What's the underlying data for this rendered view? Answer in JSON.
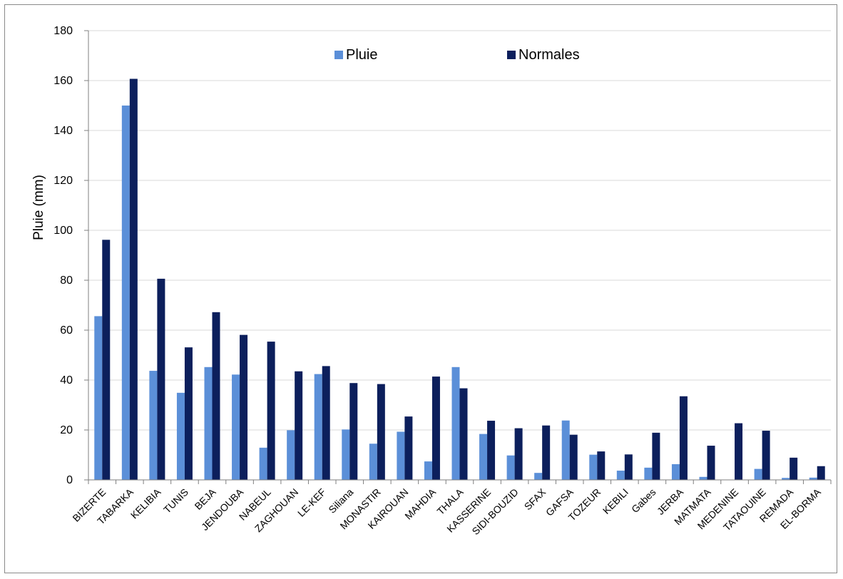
{
  "chart_data": {
    "type": "bar",
    "title": "",
    "xlabel": "",
    "ylabel": "Pluie (mm)",
    "ylim": [
      0,
      180
    ],
    "yticks": [
      0,
      20,
      40,
      60,
      80,
      100,
      120,
      140,
      160,
      180
    ],
    "grid": true,
    "legend_position": "top-center",
    "colors": {
      "Pluie": "#5b8fd8",
      "Normales": "#0c1f5c",
      "grid": "#d9d9d9",
      "axis": "#7f7f7f"
    },
    "categories": [
      "BIZERTE",
      "TABARKA",
      "KELIBIA",
      "TUNIS",
      "BEJA",
      "JENDOUBA",
      "NABEUL",
      "ZAGHOUAN",
      "LE-KEF",
      "Siliana",
      "MONASTIR",
      "KAIROUAN",
      "MAHDIA",
      "THALA",
      "KASSERINE",
      "SIDI-BOUZID",
      "SFAX",
      "GAFSA",
      "TOZEUR",
      "KEBILI",
      "Gabes",
      "JERBA",
      "MATMATA",
      "MEDENINE",
      "TATAOUINE",
      "REMADA",
      "EL-BORMA"
    ],
    "series": [
      {
        "name": "Pluie",
        "values": [
          65.6,
          150.0,
          43.7,
          34.9,
          45.2,
          42.2,
          12.9,
          19.9,
          42.4,
          20.2,
          14.5,
          19.3,
          7.4,
          45.2,
          18.4,
          9.8,
          2.8,
          23.8,
          10.1,
          3.7,
          4.9,
          6.3,
          1.2,
          0.0,
          4.4,
          0.8,
          0.9
        ]
      },
      {
        "name": "Normales",
        "values": [
          96.2,
          160.7,
          80.6,
          53.1,
          67.2,
          58.1,
          55.4,
          43.5,
          45.6,
          38.8,
          38.4,
          25.4,
          41.4,
          36.7,
          23.7,
          20.7,
          21.8,
          18.1,
          11.4,
          10.2,
          18.9,
          33.5,
          13.7,
          22.7,
          19.7,
          8.9,
          5.5
        ]
      }
    ]
  }
}
